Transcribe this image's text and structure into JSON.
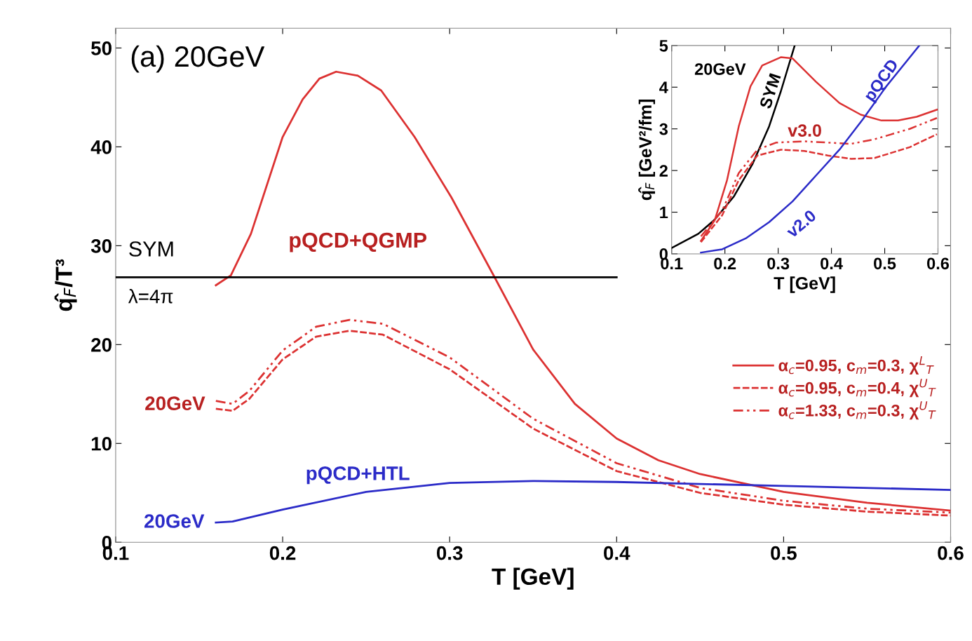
{
  "chart_data": [
    {
      "type": "line",
      "xlabel": "T [GeV]",
      "ylabel": "q̂$_{F}$/T³",
      "xlim": [
        0.1,
        0.6
      ],
      "ylim": [
        0,
        52
      ],
      "xticks": [
        0.1,
        0.2,
        0.3,
        0.4,
        0.5,
        0.6
      ],
      "yticks": [
        0,
        10,
        20,
        30,
        40,
        50
      ],
      "legend": "right",
      "grid": false,
      "annotations": [
        "(a) 20GeV",
        "SYM",
        "λ=4π",
        "pQCD+QGMP",
        "20GeV",
        "pQCD+HTL",
        "20GeV"
      ],
      "series": [
        {
          "name": "α$_{c}$=0.95, c$_{m}$=0.3, χ$^{L}$$_{T}$",
          "color": "#dc3232",
          "line_style": "solid",
          "x": [
            0.16,
            0.169,
            0.181,
            0.2,
            0.212,
            0.222,
            0.232,
            0.245,
            0.259,
            0.279,
            0.301,
            0.326,
            0.35,
            0.375,
            0.4,
            0.425,
            0.45,
            0.5,
            0.55,
            0.6
          ],
          "values": [
            26.0,
            27.0,
            31.2,
            41.0,
            44.8,
            46.9,
            47.6,
            47.2,
            45.7,
            41.0,
            34.9,
            27.1,
            19.5,
            14.0,
            10.5,
            8.3,
            6.9,
            5.1,
            4.0,
            3.2
          ]
        },
        {
          "name": "α$_{c}$=0.95, c$_{m}$=0.4, χ$^{U}$$_{T}$",
          "color": "#dc3232",
          "line_style": "dashed",
          "x": [
            0.16,
            0.17,
            0.18,
            0.2,
            0.22,
            0.24,
            0.26,
            0.3,
            0.35,
            0.4,
            0.45,
            0.5,
            0.55,
            0.6
          ],
          "values": [
            13.5,
            13.3,
            14.5,
            18.5,
            20.8,
            21.4,
            21.0,
            17.5,
            11.5,
            7.2,
            5.0,
            3.8,
            3.1,
            2.7
          ]
        },
        {
          "name": "α$_{c}$=1.33, c$_{m}$=0.3, χ$^{U}$$_{T}$",
          "color": "#dc3232",
          "line_style": "dashdot",
          "x": [
            0.16,
            0.17,
            0.18,
            0.2,
            0.22,
            0.24,
            0.26,
            0.3,
            0.35,
            0.4,
            0.45,
            0.5,
            0.55,
            0.6
          ],
          "values": [
            14.3,
            14.0,
            15.3,
            19.4,
            21.8,
            22.5,
            22.1,
            18.7,
            12.5,
            8.0,
            5.5,
            4.2,
            3.4,
            3.0
          ]
        },
        {
          "color": "#2b2bc8",
          "line_style": "solid",
          "x": [
            0.16,
            0.17,
            0.2,
            0.25,
            0.3,
            0.35,
            0.4,
            0.45,
            0.5,
            0.6
          ],
          "values": [
            2.0,
            2.1,
            3.3,
            5.1,
            6.0,
            6.2,
            6.1,
            5.9,
            5.7,
            5.3
          ]
        },
        {
          "color": "#000000",
          "line_style": "solid",
          "x": [
            0.1,
            0.4
          ],
          "values": [
            26.8,
            26.8
          ]
        }
      ]
    },
    {
      "type": "line",
      "xlabel": "T [GeV]",
      "ylabel": "q̂$_{F}$ [GeV²/fm]",
      "xlim": [
        0.1,
        0.6
      ],
      "ylim": [
        0,
        5
      ],
      "xticks": [
        0.1,
        0.2,
        0.3,
        0.4,
        0.5,
        0.6
      ],
      "yticks": [
        0,
        1,
        2,
        3,
        4,
        5
      ],
      "grid": false,
      "annotations": [
        "20GeV",
        "SYM",
        "v3.0",
        "pQCD",
        "v2.0"
      ],
      "series": [
        {
          "color": "#000000",
          "line_style": "solid",
          "x": [
            0.1,
            0.15,
            0.18,
            0.217,
            0.252,
            0.283,
            0.305,
            0.331
          ],
          "values": [
            0.14,
            0.48,
            0.81,
            1.38,
            2.16,
            3.06,
            3.9,
            5.0
          ]
        },
        {
          "color": "#dc3232",
          "line_style": "solid",
          "x": [
            0.155,
            0.181,
            0.204,
            0.226,
            0.248,
            0.27,
            0.305,
            0.327,
            0.371,
            0.415,
            0.455,
            0.494,
            0.525,
            0.56,
            0.598
          ],
          "values": [
            0.31,
            0.81,
            1.77,
            3.06,
            4.02,
            4.52,
            4.72,
            4.69,
            4.13,
            3.62,
            3.34,
            3.2,
            3.2,
            3.29,
            3.46
          ]
        },
        {
          "color": "#dc3232",
          "line_style": "dashdot",
          "x": [
            0.155,
            0.195,
            0.226,
            0.261,
            0.296,
            0.349,
            0.393,
            0.437,
            0.481,
            0.547,
            0.598
          ],
          "values": [
            0.42,
            1.04,
            1.94,
            2.5,
            2.67,
            2.7,
            2.67,
            2.64,
            2.75,
            3.0,
            3.26
          ]
        },
        {
          "color": "#dc3232",
          "line_style": "dashed",
          "x": [
            0.155,
            0.195,
            0.226,
            0.261,
            0.305,
            0.349,
            0.393,
            0.437,
            0.481,
            0.547,
            0.598
          ],
          "values": [
            0.28,
            0.93,
            1.77,
            2.36,
            2.5,
            2.47,
            2.36,
            2.28,
            2.3,
            2.56,
            2.87
          ]
        },
        {
          "color": "#2b2bc8",
          "line_style": "solid",
          "x": [
            0.155,
            0.195,
            0.239,
            0.283,
            0.327,
            0.371,
            0.415,
            0.459,
            0.503,
            0.565
          ],
          "values": [
            0.03,
            0.11,
            0.37,
            0.76,
            1.26,
            1.88,
            2.5,
            3.23,
            4.02,
            5.0
          ]
        }
      ]
    }
  ]
}
